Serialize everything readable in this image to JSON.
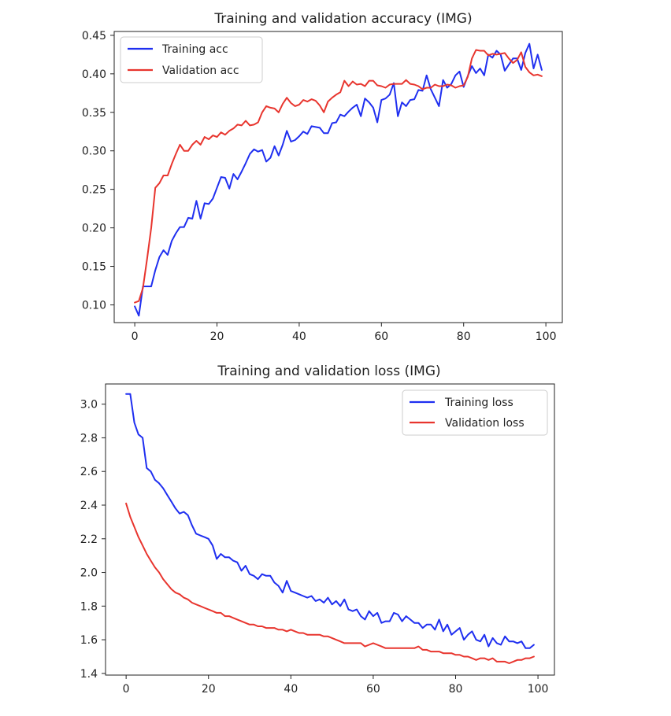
{
  "chart_data": [
    {
      "type": "line",
      "title": "Training and validation accuracy (IMG)",
      "xlabel": "",
      "ylabel": "",
      "xlim": [
        -5.0,
        104.0
      ],
      "ylim": [
        0.077,
        0.455
      ],
      "xticks": [
        "0",
        "20",
        "40",
        "60",
        "80",
        "100"
      ],
      "yticks": [
        "0.10",
        "0.15",
        "0.20",
        "0.25",
        "0.30",
        "0.35",
        "0.40",
        "0.45"
      ],
      "grid": false,
      "legend_position": "upper-left",
      "x": [
        0,
        1,
        2,
        3,
        4,
        5,
        6,
        7,
        8,
        9,
        10,
        11,
        12,
        13,
        14,
        15,
        16,
        17,
        18,
        19,
        20,
        21,
        22,
        23,
        24,
        25,
        26,
        27,
        28,
        29,
        30,
        31,
        32,
        33,
        34,
        35,
        36,
        37,
        38,
        39,
        40,
        41,
        42,
        43,
        44,
        45,
        46,
        47,
        48,
        49,
        50,
        51,
        52,
        53,
        54,
        55,
        56,
        57,
        58,
        59,
        60,
        61,
        62,
        63,
        64,
        65,
        66,
        67,
        68,
        69,
        70,
        71,
        72,
        73,
        74,
        75,
        76,
        77,
        78,
        79,
        80,
        81,
        82,
        83,
        84,
        85,
        86,
        87,
        88,
        89,
        90,
        91,
        92,
        93,
        94,
        95,
        96,
        97,
        98,
        99
      ],
      "series": [
        {
          "name": "Training acc",
          "color": "#1f2ff0",
          "values": [
            0.098,
            0.086,
            0.124,
            0.124,
            0.124,
            0.145,
            0.162,
            0.171,
            0.165,
            0.183,
            0.193,
            0.201,
            0.201,
            0.213,
            0.212,
            0.235,
            0.212,
            0.232,
            0.231,
            0.238,
            0.252,
            0.266,
            0.265,
            0.251,
            0.27,
            0.263,
            0.273,
            0.284,
            0.296,
            0.302,
            0.299,
            0.301,
            0.286,
            0.291,
            0.306,
            0.294,
            0.308,
            0.326,
            0.312,
            0.314,
            0.319,
            0.325,
            0.322,
            0.332,
            0.331,
            0.33,
            0.323,
            0.323,
            0.336,
            0.337,
            0.347,
            0.345,
            0.351,
            0.356,
            0.36,
            0.345,
            0.368,
            0.363,
            0.356,
            0.337,
            0.366,
            0.368,
            0.373,
            0.388,
            0.345,
            0.363,
            0.358,
            0.366,
            0.367,
            0.379,
            0.378,
            0.398,
            0.38,
            0.369,
            0.358,
            0.392,
            0.382,
            0.387,
            0.398,
            0.403,
            0.383,
            0.397,
            0.41,
            0.401,
            0.407,
            0.398,
            0.425,
            0.421,
            0.43,
            0.425,
            0.404,
            0.412,
            0.42,
            0.42,
            0.405,
            0.427,
            0.439,
            0.407,
            0.425,
            0.405
          ]
        },
        {
          "name": "Validation acc",
          "color": "#e8352e",
          "values": [
            0.103,
            0.105,
            0.122,
            0.16,
            0.2,
            0.252,
            0.258,
            0.268,
            0.268,
            0.283,
            0.296,
            0.308,
            0.3,
            0.3,
            0.308,
            0.313,
            0.308,
            0.318,
            0.315,
            0.32,
            0.318,
            0.324,
            0.321,
            0.326,
            0.329,
            0.334,
            0.333,
            0.339,
            0.333,
            0.334,
            0.337,
            0.35,
            0.358,
            0.356,
            0.355,
            0.35,
            0.361,
            0.369,
            0.362,
            0.358,
            0.36,
            0.366,
            0.364,
            0.367,
            0.365,
            0.359,
            0.35,
            0.364,
            0.369,
            0.373,
            0.376,
            0.391,
            0.384,
            0.39,
            0.386,
            0.387,
            0.384,
            0.391,
            0.391,
            0.385,
            0.384,
            0.382,
            0.386,
            0.387,
            0.387,
            0.387,
            0.392,
            0.387,
            0.386,
            0.384,
            0.38,
            0.382,
            0.382,
            0.386,
            0.384,
            0.384,
            0.386,
            0.385,
            0.382,
            0.384,
            0.385,
            0.396,
            0.42,
            0.431,
            0.43,
            0.43,
            0.424,
            0.426,
            0.425,
            0.426,
            0.427,
            0.42,
            0.414,
            0.418,
            0.428,
            0.409,
            0.402,
            0.398,
            0.399,
            0.397
          ]
        }
      ]
    },
    {
      "type": "line",
      "title": "Training and validation loss (IMG)",
      "xlabel": "",
      "ylabel": "",
      "xlim": [
        -5.0,
        104.0
      ],
      "ylim": [
        1.39,
        3.12
      ],
      "xticks": [
        "0",
        "20",
        "40",
        "60",
        "80",
        "100"
      ],
      "yticks": [
        "1.4",
        "1.6",
        "1.8",
        "2.0",
        "2.2",
        "2.4",
        "2.6",
        "2.8",
        "3.0"
      ],
      "grid": false,
      "legend_position": "upper-right",
      "x": [
        0,
        1,
        2,
        3,
        4,
        5,
        6,
        7,
        8,
        9,
        10,
        11,
        12,
        13,
        14,
        15,
        16,
        17,
        18,
        19,
        20,
        21,
        22,
        23,
        24,
        25,
        26,
        27,
        28,
        29,
        30,
        31,
        32,
        33,
        34,
        35,
        36,
        37,
        38,
        39,
        40,
        41,
        42,
        43,
        44,
        45,
        46,
        47,
        48,
        49,
        50,
        51,
        52,
        53,
        54,
        55,
        56,
        57,
        58,
        59,
        60,
        61,
        62,
        63,
        64,
        65,
        66,
        67,
        68,
        69,
        70,
        71,
        72,
        73,
        74,
        75,
        76,
        77,
        78,
        79,
        80,
        81,
        82,
        83,
        84,
        85,
        86,
        87,
        88,
        89,
        90,
        91,
        92,
        93,
        94,
        95,
        96,
        97,
        98,
        99
      ],
      "series": [
        {
          "name": "Training loss",
          "color": "#1f2ff0",
          "values": [
            3.06,
            3.06,
            2.89,
            2.82,
            2.8,
            2.62,
            2.6,
            2.55,
            2.53,
            2.5,
            2.46,
            2.42,
            2.38,
            2.35,
            2.36,
            2.34,
            2.28,
            2.23,
            2.22,
            2.21,
            2.2,
            2.16,
            2.08,
            2.11,
            2.09,
            2.09,
            2.07,
            2.06,
            2.01,
            2.04,
            1.99,
            1.98,
            1.96,
            1.99,
            1.98,
            1.98,
            1.94,
            1.92,
            1.88,
            1.95,
            1.89,
            1.88,
            1.87,
            1.86,
            1.85,
            1.86,
            1.83,
            1.84,
            1.82,
            1.85,
            1.81,
            1.83,
            1.8,
            1.84,
            1.78,
            1.77,
            1.78,
            1.74,
            1.72,
            1.77,
            1.74,
            1.76,
            1.7,
            1.71,
            1.71,
            1.76,
            1.75,
            1.71,
            1.74,
            1.72,
            1.7,
            1.7,
            1.67,
            1.69,
            1.69,
            1.66,
            1.72,
            1.65,
            1.69,
            1.63,
            1.65,
            1.67,
            1.6,
            1.63,
            1.65,
            1.6,
            1.59,
            1.63,
            1.56,
            1.61,
            1.58,
            1.57,
            1.62,
            1.59,
            1.59,
            1.58,
            1.59,
            1.55,
            1.55,
            1.57
          ]
        },
        {
          "name": "Validation loss",
          "color": "#e8352e",
          "values": [
            2.41,
            2.33,
            2.27,
            2.21,
            2.16,
            2.11,
            2.07,
            2.03,
            2.0,
            1.96,
            1.93,
            1.9,
            1.88,
            1.87,
            1.85,
            1.84,
            1.82,
            1.81,
            1.8,
            1.79,
            1.78,
            1.77,
            1.76,
            1.76,
            1.74,
            1.74,
            1.73,
            1.72,
            1.71,
            1.7,
            1.69,
            1.69,
            1.68,
            1.68,
            1.67,
            1.67,
            1.67,
            1.66,
            1.66,
            1.65,
            1.66,
            1.65,
            1.64,
            1.64,
            1.63,
            1.63,
            1.63,
            1.63,
            1.62,
            1.62,
            1.61,
            1.6,
            1.59,
            1.58,
            1.58,
            1.58,
            1.58,
            1.58,
            1.56,
            1.57,
            1.58,
            1.57,
            1.56,
            1.55,
            1.55,
            1.55,
            1.55,
            1.55,
            1.55,
            1.55,
            1.55,
            1.56,
            1.54,
            1.54,
            1.53,
            1.53,
            1.53,
            1.52,
            1.52,
            1.52,
            1.51,
            1.51,
            1.5,
            1.5,
            1.49,
            1.48,
            1.49,
            1.49,
            1.48,
            1.49,
            1.47,
            1.47,
            1.47,
            1.46,
            1.47,
            1.48,
            1.48,
            1.49,
            1.49,
            1.5
          ]
        }
      ]
    }
  ]
}
